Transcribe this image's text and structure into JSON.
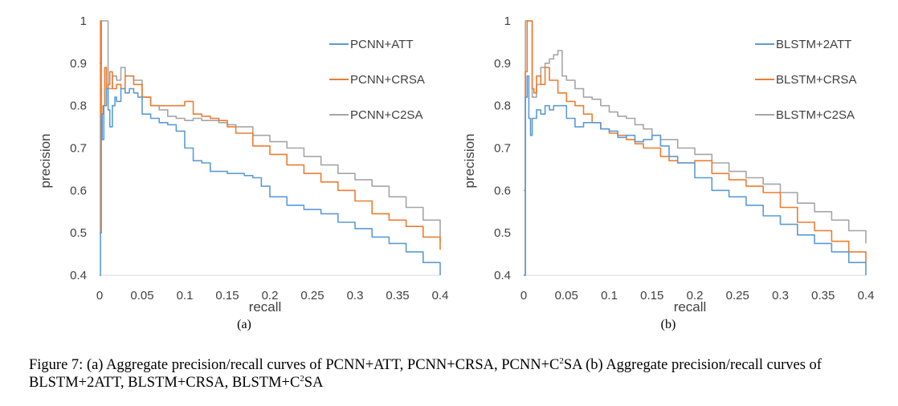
{
  "chart_data": [
    {
      "type": "line",
      "subplot_label": "(a)",
      "xlabel": "recall",
      "ylabel": "precision",
      "xlim": [
        0,
        0.4
      ],
      "ylim": [
        0.4,
        1
      ],
      "x_ticks": [
        "0",
        "0.05",
        "0.1",
        "0.15",
        "0.2",
        "0.25",
        "0.3",
        "0.35",
        "0.4"
      ],
      "y_ticks": [
        "0.4",
        "0.5",
        "0.6",
        "0.7",
        "0.8",
        "0.9",
        "1"
      ],
      "grid": false,
      "legend_position": "top-right",
      "series": [
        {
          "name": "PCNN+ATT",
          "color": "#5b9bd5",
          "x": [
            0,
            0.001,
            0.002,
            0.003,
            0.005,
            0.008,
            0.01,
            0.012,
            0.015,
            0.018,
            0.02,
            0.025,
            0.03,
            0.035,
            0.04,
            0.045,
            0.05,
            0.06,
            0.07,
            0.08,
            0.09,
            0.1,
            0.11,
            0.12,
            0.13,
            0.14,
            0.15,
            0.16,
            0.17,
            0.18,
            0.19,
            0.2,
            0.22,
            0.24,
            0.26,
            0.28,
            0.3,
            0.32,
            0.34,
            0.36,
            0.38,
            0.4
          ],
          "y": [
            0.4,
            0.5,
            0.78,
            0.72,
            0.8,
            0.84,
            0.79,
            0.75,
            0.8,
            0.82,
            0.81,
            0.84,
            0.83,
            0.84,
            0.83,
            0.82,
            0.78,
            0.77,
            0.76,
            0.755,
            0.74,
            0.7,
            0.67,
            0.665,
            0.645,
            0.645,
            0.64,
            0.64,
            0.635,
            0.63,
            0.61,
            0.585,
            0.565,
            0.555,
            0.545,
            0.525,
            0.51,
            0.49,
            0.475,
            0.455,
            0.43,
            0.4
          ]
        },
        {
          "name": "PCNN+CRSA",
          "color": "#ed7d31",
          "x": [
            0,
            0.001,
            0.002,
            0.004,
            0.006,
            0.008,
            0.01,
            0.012,
            0.015,
            0.02,
            0.025,
            0.03,
            0.04,
            0.05,
            0.06,
            0.07,
            0.08,
            0.09,
            0.1,
            0.11,
            0.12,
            0.13,
            0.14,
            0.15,
            0.16,
            0.18,
            0.2,
            0.22,
            0.24,
            0.26,
            0.28,
            0.3,
            0.32,
            0.34,
            0.36,
            0.38,
            0.4
          ],
          "y": [
            0.5,
            1.0,
            0.78,
            0.8,
            0.89,
            0.84,
            0.85,
            0.88,
            0.84,
            0.85,
            0.84,
            0.87,
            0.85,
            0.82,
            0.8,
            0.8,
            0.8,
            0.8,
            0.81,
            0.78,
            0.775,
            0.77,
            0.765,
            0.75,
            0.735,
            0.705,
            0.685,
            0.66,
            0.64,
            0.62,
            0.6,
            0.575,
            0.545,
            0.53,
            0.515,
            0.49,
            0.46
          ]
        },
        {
          "name": "PCNN+C2SA",
          "color": "#a5a5a5",
          "x": [
            0,
            0.002,
            0.005,
            0.008,
            0.01,
            0.015,
            0.02,
            0.025,
            0.03,
            0.04,
            0.05,
            0.06,
            0.07,
            0.08,
            0.09,
            0.1,
            0.11,
            0.12,
            0.13,
            0.14,
            0.15,
            0.16,
            0.18,
            0.2,
            0.22,
            0.24,
            0.26,
            0.28,
            0.3,
            0.32,
            0.34,
            0.36,
            0.38,
            0.4
          ],
          "y": [
            0.9,
            1.0,
            1.0,
            1.0,
            0.84,
            0.87,
            0.86,
            0.89,
            0.87,
            0.86,
            0.82,
            0.8,
            0.79,
            0.775,
            0.77,
            0.765,
            0.77,
            0.765,
            0.765,
            0.76,
            0.755,
            0.75,
            0.73,
            0.715,
            0.7,
            0.68,
            0.66,
            0.64,
            0.625,
            0.61,
            0.585,
            0.56,
            0.53,
            0.48
          ]
        }
      ]
    },
    {
      "type": "line",
      "subplot_label": "(b)",
      "xlabel": "recall",
      "ylabel": "precision",
      "xlim": [
        0,
        0.4
      ],
      "ylim": [
        0.4,
        1
      ],
      "x_ticks": [
        "0",
        "0.05",
        "0.1",
        "0.15",
        "0.2",
        "0.25",
        "0.3",
        "0.35",
        "0.4"
      ],
      "y_ticks": [
        "0.4",
        "0.5",
        "0.6",
        "0.7",
        "0.8",
        "0.9",
        "1"
      ],
      "grid": false,
      "legend_position": "top-right",
      "series": [
        {
          "name": "BLSTM+2ATT",
          "color": "#5b9bd5",
          "x": [
            0,
            0.002,
            0.004,
            0.006,
            0.008,
            0.01,
            0.015,
            0.02,
            0.025,
            0.03,
            0.035,
            0.04,
            0.05,
            0.06,
            0.07,
            0.08,
            0.09,
            0.1,
            0.11,
            0.12,
            0.13,
            0.14,
            0.15,
            0.16,
            0.17,
            0.18,
            0.2,
            0.22,
            0.24,
            0.26,
            0.28,
            0.3,
            0.32,
            0.34,
            0.36,
            0.38,
            0.4
          ],
          "y": [
            0.4,
            0.82,
            0.87,
            0.77,
            0.73,
            0.77,
            0.79,
            0.78,
            0.8,
            0.79,
            0.8,
            0.8,
            0.77,
            0.75,
            0.76,
            0.76,
            0.745,
            0.74,
            0.725,
            0.73,
            0.715,
            0.72,
            0.73,
            0.705,
            0.68,
            0.665,
            0.63,
            0.6,
            0.585,
            0.565,
            0.54,
            0.52,
            0.495,
            0.475,
            0.455,
            0.43,
            0.4
          ]
        },
        {
          "name": "BLSTM+CRSA",
          "color": "#ed7d31",
          "x": [
            0,
            0.002,
            0.004,
            0.006,
            0.008,
            0.01,
            0.012,
            0.015,
            0.02,
            0.025,
            0.03,
            0.04,
            0.05,
            0.06,
            0.07,
            0.08,
            0.09,
            0.1,
            0.11,
            0.12,
            0.13,
            0.14,
            0.15,
            0.16,
            0.17,
            0.18,
            0.2,
            0.22,
            0.24,
            0.26,
            0.28,
            0.3,
            0.32,
            0.34,
            0.36,
            0.38,
            0.4
          ],
          "y": [
            0.4,
            0.88,
            1.0,
            1.0,
            1.0,
            0.84,
            0.83,
            0.87,
            0.85,
            0.89,
            0.86,
            0.83,
            0.81,
            0.8,
            0.78,
            0.76,
            0.745,
            0.735,
            0.73,
            0.72,
            0.71,
            0.7,
            0.7,
            0.68,
            0.67,
            0.665,
            0.67,
            0.64,
            0.625,
            0.61,
            0.595,
            0.56,
            0.525,
            0.505,
            0.48,
            0.455,
            0.43
          ]
        },
        {
          "name": "BLSTM+C2SA",
          "color": "#a5a5a5",
          "x": [
            0,
            0.002,
            0.005,
            0.01,
            0.015,
            0.02,
            0.025,
            0.03,
            0.035,
            0.04,
            0.045,
            0.05,
            0.06,
            0.07,
            0.08,
            0.09,
            0.1,
            0.11,
            0.12,
            0.13,
            0.14,
            0.15,
            0.16,
            0.18,
            0.2,
            0.22,
            0.24,
            0.26,
            0.28,
            0.3,
            0.32,
            0.34,
            0.36,
            0.38,
            0.4
          ],
          "y": [
            0.6,
            1.0,
            1.0,
            0.82,
            0.85,
            0.89,
            0.9,
            0.91,
            0.92,
            0.93,
            0.87,
            0.86,
            0.84,
            0.82,
            0.815,
            0.8,
            0.785,
            0.775,
            0.77,
            0.755,
            0.745,
            0.73,
            0.72,
            0.7,
            0.685,
            0.665,
            0.645,
            0.63,
            0.615,
            0.595,
            0.57,
            0.55,
            0.53,
            0.505,
            0.475
          ]
        }
      ]
    }
  ],
  "caption": {
    "part1": "Figure 7: (a) Aggregate precision/recall curves of PCNN+ATT, PCNN+CRSA, PCNN+C",
    "sup1": "2",
    "part2": "SA (b) Aggregate precision/recall curves of BLSTM+2ATT, BLSTM+CRSA, BLSTM+C",
    "sup2": "2",
    "part3": "SA"
  }
}
